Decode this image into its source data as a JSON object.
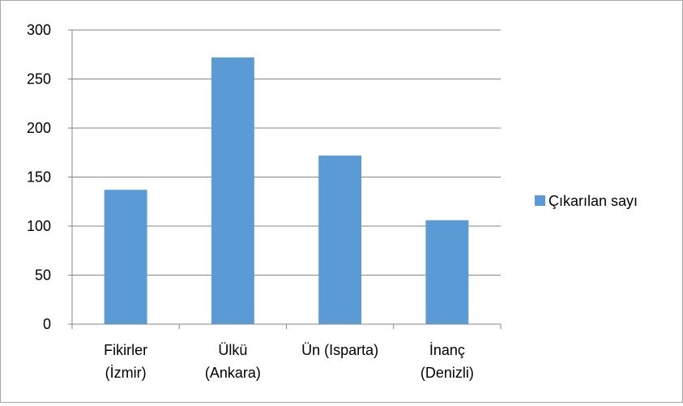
{
  "chart_data": {
    "type": "bar",
    "categories": [
      [
        "Fikirler",
        "(İzmir)"
      ],
      [
        "Ülkü",
        "(Ankara)"
      ],
      [
        "Ün (Isparta)"
      ],
      [
        "İnanç",
        "(Denizli)"
      ]
    ],
    "series": [
      {
        "name": "Çıkarılan sayı",
        "values": [
          137,
          272,
          172,
          106
        ],
        "color": "#5b9bd5"
      }
    ],
    "ylim": [
      0,
      300
    ],
    "yticks": [
      0,
      50,
      100,
      150,
      200,
      250,
      300
    ],
    "grid": true,
    "legend": "right",
    "colors": {
      "grid": "#868686",
      "axis": "#868686",
      "border": "#a6a6a6"
    }
  }
}
